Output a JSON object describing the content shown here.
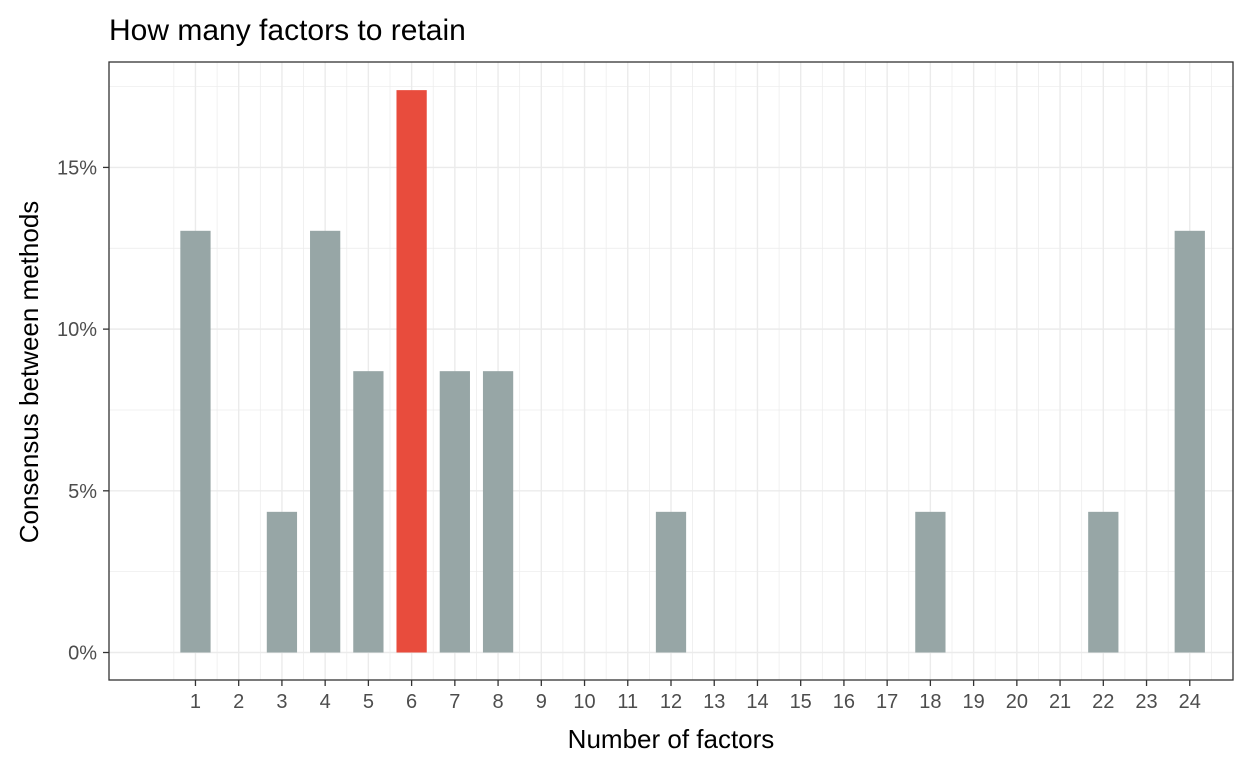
{
  "chart_data": {
    "type": "bar",
    "title": "How many factors to retain",
    "xlabel": "Number of factors",
    "ylabel": "Consensus between methods",
    "categories": [
      "1",
      "2",
      "3",
      "4",
      "5",
      "6",
      "7",
      "8",
      "9",
      "10",
      "11",
      "12",
      "13",
      "14",
      "15",
      "16",
      "17",
      "18",
      "19",
      "20",
      "21",
      "22",
      "23",
      "24"
    ],
    "values": [
      13.04,
      0,
      4.35,
      13.04,
      8.7,
      17.39,
      8.7,
      8.7,
      0,
      0,
      0,
      4.35,
      0,
      0,
      0,
      0,
      0,
      4.35,
      0,
      0,
      0,
      4.35,
      0,
      13.04
    ],
    "highlight_category": "6",
    "ylim": [
      -0.85,
      18.26
    ],
    "yticks": [
      0,
      5,
      10,
      15
    ],
    "ytick_labels": [
      "0%",
      "5%",
      "10%",
      "15%"
    ],
    "grid": true,
    "legend": "none",
    "colors": {
      "bar": "#97a6a6",
      "highlight": "#e84c3d",
      "grid": "#ebebeb",
      "panel_border": "#333333",
      "tick_text": "#4d4d4d",
      "title_text": "#000000"
    }
  }
}
